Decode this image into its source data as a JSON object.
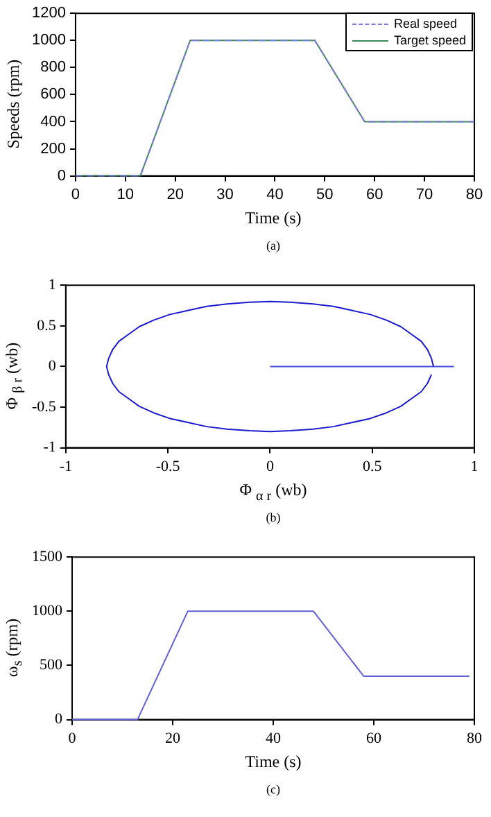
{
  "chart_data": [
    {
      "type": "line",
      "xlabel": "Time (s)",
      "ylabel": "Speeds (rpm)",
      "annotations": [
        "(a)"
      ],
      "xlim": [
        0,
        80
      ],
      "xticks": [
        0,
        10,
        20,
        30,
        40,
        50,
        60,
        70,
        80
      ],
      "ylim": [
        0,
        1200
      ],
      "yticks": [
        0,
        200,
        400,
        600,
        800,
        1000,
        1200
      ],
      "grid": false,
      "legend": "top right",
      "marker": "none",
      "series": [
        {
          "name": "Real speed",
          "color": "#7b7bd6",
          "line_style": "dashed",
          "x": [
            0,
            13,
            23,
            48,
            58,
            80
          ],
          "values": [
            0,
            0,
            1000,
            1000,
            400,
            400
          ]
        },
        {
          "name": "Target speed",
          "color": "#3c8a5a",
          "line_style": "solid",
          "x": [
            0,
            13,
            23,
            48,
            58,
            80
          ],
          "values": [
            0,
            0,
            1000,
            1000,
            400,
            400
          ]
        }
      ]
    },
    {
      "type": "line",
      "xlabel": "Φ $_{α r}$ (wb)",
      "ylabel": "Φ $_{β r}$ (wb)",
      "annotations": [
        "(b)"
      ],
      "xlim": [
        -1,
        1
      ],
      "xticks": [
        -1,
        -0.5,
        0,
        0.5,
        1
      ],
      "ylim": [
        -1,
        1
      ],
      "yticks": [
        -1,
        -0.5,
        0,
        0.5,
        1
      ],
      "grid": false,
      "marker": "none",
      "series": [
        {
          "color": "#1a1ad0",
          "x": [
            0.8,
            0.79,
            0.77,
            0.74,
            0.69,
            0.64,
            0.57,
            0.49,
            0.4,
            0.31,
            0.21,
            0.1,
            0,
            -0.1,
            -0.21,
            -0.31,
            -0.4,
            -0.49,
            -0.57,
            -0.64,
            -0.69,
            -0.74,
            -0.77,
            -0.79,
            -0.8,
            -0.79,
            -0.77,
            -0.74,
            -0.69,
            -0.64,
            -0.57,
            -0.49,
            -0.4,
            -0.31,
            -0.21,
            -0.1,
            0,
            0.1,
            0.21,
            0.31,
            0.4,
            0.49,
            0.57,
            0.64,
            0.69,
            0.74,
            0.77,
            0.79
          ],
          "values": [
            0,
            0.1,
            0.21,
            0.31,
            0.4,
            0.49,
            0.57,
            0.64,
            0.69,
            0.74,
            0.77,
            0.79,
            0.8,
            0.79,
            0.77,
            0.74,
            0.69,
            0.64,
            0.57,
            0.49,
            0.4,
            0.31,
            0.21,
            0.1,
            0,
            -0.1,
            -0.21,
            -0.31,
            -0.4,
            -0.49,
            -0.57,
            -0.64,
            -0.69,
            -0.74,
            -0.77,
            -0.79,
            -0.8,
            -0.79,
            -0.77,
            -0.74,
            -0.69,
            -0.64,
            -0.57,
            -0.49,
            -0.4,
            -0.31,
            -0.21,
            -0.1
          ]
        },
        {
          "color": "#4a4ae0",
          "x": [
            0,
            0.9
          ],
          "values": [
            0,
            0
          ]
        }
      ]
    },
    {
      "type": "line",
      "xlabel": "Time (s)",
      "ylabel": "ω$_{s}$ (rpm)",
      "annotations": [
        "(c)"
      ],
      "xlim": [
        0,
        80
      ],
      "xticks": [
        0,
        20,
        40,
        60,
        80
      ],
      "ylim": [
        0,
        1500
      ],
      "yticks": [
        0,
        500,
        1000,
        1500
      ],
      "grid": false,
      "marker": "none",
      "series": [
        {
          "color": "#6060d8",
          "x": [
            0,
            13,
            23,
            48,
            58,
            79
          ],
          "values": [
            0,
            0,
            1000,
            1000,
            400,
            400
          ]
        }
      ]
    }
  ]
}
